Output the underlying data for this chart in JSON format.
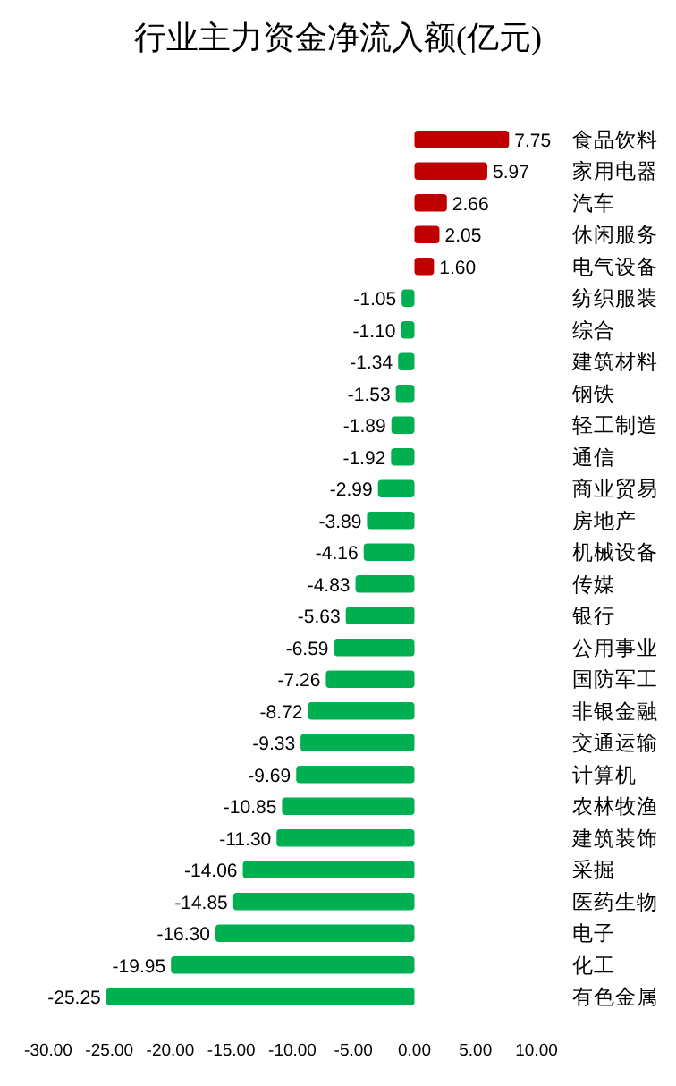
{
  "chart_data": {
    "type": "bar",
    "orientation": "horizontal",
    "title": "行业主力资金净流入额(亿元)",
    "categories": [
      "食品饮料",
      "家用电器",
      "汽车",
      "休闲服务",
      "电气设备",
      "纺织服装",
      "综合",
      "建筑材料",
      "钢铁",
      "轻工制造",
      "通信",
      "商业贸易",
      "房地产",
      "机械设备",
      "传媒",
      "银行",
      "公用事业",
      "国防军工",
      "非银金融",
      "交通运输",
      "计算机",
      "农林牧渔",
      "建筑装饰",
      "采掘",
      "医药生物",
      "电子",
      "化工",
      "有色金属"
    ],
    "values": [
      7.75,
      5.97,
      2.66,
      2.05,
      1.6,
      -1.05,
      -1.1,
      -1.34,
      -1.53,
      -1.89,
      -1.92,
      -2.99,
      -3.89,
      -4.16,
      -4.83,
      -5.63,
      -6.59,
      -7.26,
      -8.72,
      -9.33,
      -9.69,
      -10.85,
      -11.3,
      -14.06,
      -14.85,
      -16.3,
      -19.95,
      -25.25
    ],
    "value_labels": [
      "7.75",
      "5.97",
      "2.66",
      "2.05",
      "1.60",
      "-1.05",
      "-1.10",
      "-1.34",
      "-1.53",
      "-1.89",
      "-1.92",
      "-2.99",
      "-3.89",
      "-4.16",
      "-4.83",
      "-5.63",
      "-6.59",
      "-7.26",
      "-8.72",
      "-9.33",
      "-9.69",
      "-10.85",
      "-11.30",
      "-14.06",
      "-14.85",
      "-16.30",
      "-19.95",
      "-25.25"
    ],
    "colors": [
      "#c00000",
      "#c00000",
      "#c00000",
      "#c00000",
      "#c00000",
      "#00b050",
      "#00b050",
      "#00b050",
      "#00b050",
      "#00b050",
      "#00b050",
      "#00b050",
      "#00b050",
      "#00b050",
      "#00b050",
      "#00b050",
      "#00b050",
      "#00b050",
      "#00b050",
      "#00b050",
      "#00b050",
      "#00b050",
      "#00b050",
      "#00b050",
      "#00b050",
      "#00b050",
      "#00b050",
      "#00b050"
    ],
    "xlim": [
      -30,
      10
    ],
    "xticks": [
      {
        "value": -30,
        "label": "-30.00"
      },
      {
        "value": -25,
        "label": "-25.00"
      },
      {
        "value": -20,
        "label": "-20.00"
      },
      {
        "value": -15,
        "label": "-15.00"
      },
      {
        "value": -10,
        "label": "-10.00"
      },
      {
        "value": -5,
        "label": "-5.00"
      },
      {
        "value": 0,
        "label": "0.00"
      },
      {
        "value": 5,
        "label": "5.00"
      },
      {
        "value": 10,
        "label": "10.00"
      }
    ],
    "grid": false
  }
}
